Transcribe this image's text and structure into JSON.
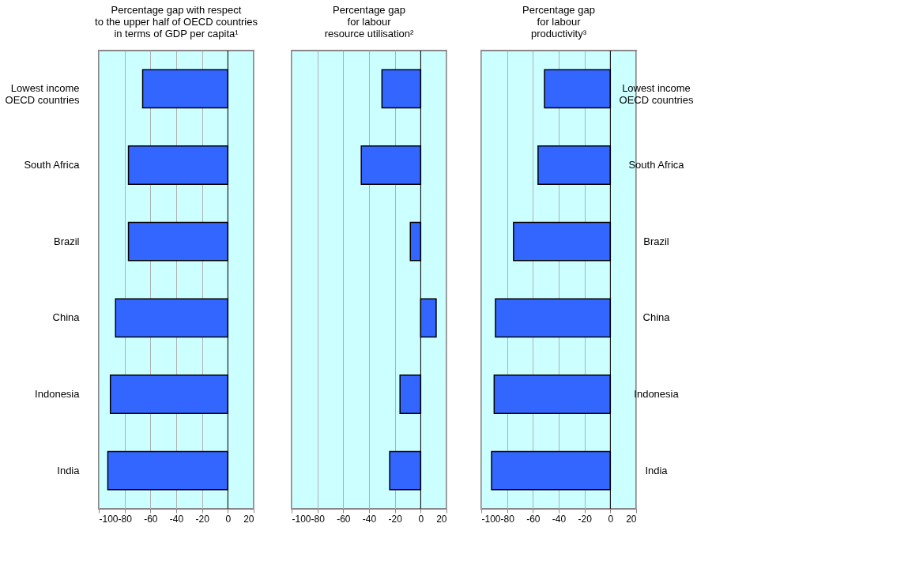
{
  "chart_data": [
    {
      "type": "bar",
      "orientation": "horizontal",
      "title": "Percentage gap with respect\nto the upper half of OECD countries\nin terms of GDP per capita¹",
      "categories": [
        "Lowest income\nOECD countries",
        "South Africa",
        "Brazil",
        "China",
        "Indonesia",
        "India"
      ],
      "values": [
        -66,
        -77,
        -77,
        -87,
        -91,
        -93
      ],
      "color": "#3366ff",
      "xlim": [
        -100,
        20
      ],
      "xticks": [
        -100,
        -80,
        -60,
        -40,
        -20,
        0,
        20
      ],
      "grid": "x",
      "ref_lines": [
        {
          "axis": "x",
          "value": 0,
          "color": "#000000"
        }
      ]
    },
    {
      "type": "bar",
      "orientation": "horizontal",
      "title": "Percentage gap\nfor labour\nresource utilisation²",
      "categories": [
        null,
        null,
        null,
        null,
        null,
        null
      ],
      "values": [
        -30,
        -46,
        -8,
        12,
        -16,
        -24
      ],
      "color": "#3366ff",
      "xlim": [
        -100,
        20
      ],
      "xticks": [
        -100,
        -80,
        -60,
        -40,
        -20,
        0,
        20
      ],
      "grid": "x",
      "tick_labels": "x",
      "ref_lines": [
        {
          "axis": "x",
          "value": 0,
          "color": "#000000"
        }
      ]
    },
    {
      "type": "bar",
      "orientation": "horizontal",
      "title": "Percentage gap\nfor labour\nproductivity³",
      "categories": [
        "Lowest income\nOECD countries",
        "South Africa",
        "Brazil",
        "China",
        "Indonesia",
        "India"
      ],
      "values": [
        -51,
        -56,
        -75,
        -89,
        -90,
        -92
      ],
      "color": "#3366ff",
      "xlim": [
        -100,
        20
      ],
      "xticks": [
        -100,
        -80,
        -60,
        -40,
        -20,
        0,
        20
      ],
      "grid": "x",
      "ref_lines": [
        {
          "axis": "x",
          "value": 0,
          "color": "#000000"
        }
      ]
    }
  ]
}
